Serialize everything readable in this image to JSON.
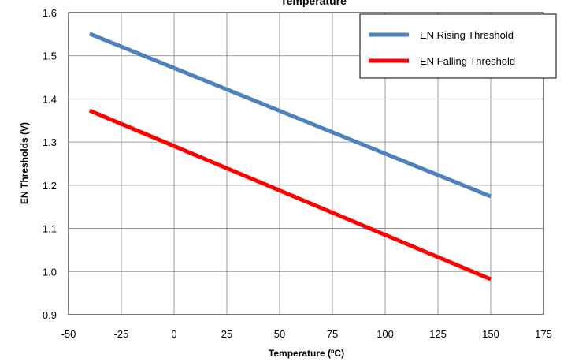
{
  "chart_data": {
    "type": "line",
    "title": "Temperature",
    "xlabel": "Temperature (ºC)",
    "ylabel": "EN Thresholds (V)",
    "xlim": [
      -50,
      175
    ],
    "ylim": [
      0.9,
      1.6
    ],
    "x_ticks": [
      -50,
      -25,
      0,
      25,
      50,
      75,
      100,
      125,
      150,
      175
    ],
    "y_ticks": [
      0.9,
      1.0,
      1.1,
      1.2,
      1.3,
      1.4,
      1.5,
      1.6
    ],
    "x_tick_labels": [
      "-50",
      "-25",
      "0",
      "25",
      "50",
      "75",
      "100",
      "125",
      "150",
      "175"
    ],
    "y_tick_labels": [
      "0.9",
      "1.0",
      "1.1",
      "1.2",
      "1.3",
      "1.4",
      "1.5",
      "1.6"
    ],
    "grid": true,
    "legend_position": "top-right",
    "series": [
      {
        "name": "EN Rising Threshold",
        "color": "#4f81bd",
        "x": [
          -40,
          150
        ],
        "y": [
          1.551,
          1.174
        ]
      },
      {
        "name": "EN Falling Threshold",
        "color": "#ff0000",
        "x": [
          -40,
          150
        ],
        "y": [
          1.373,
          0.982
        ]
      }
    ]
  }
}
